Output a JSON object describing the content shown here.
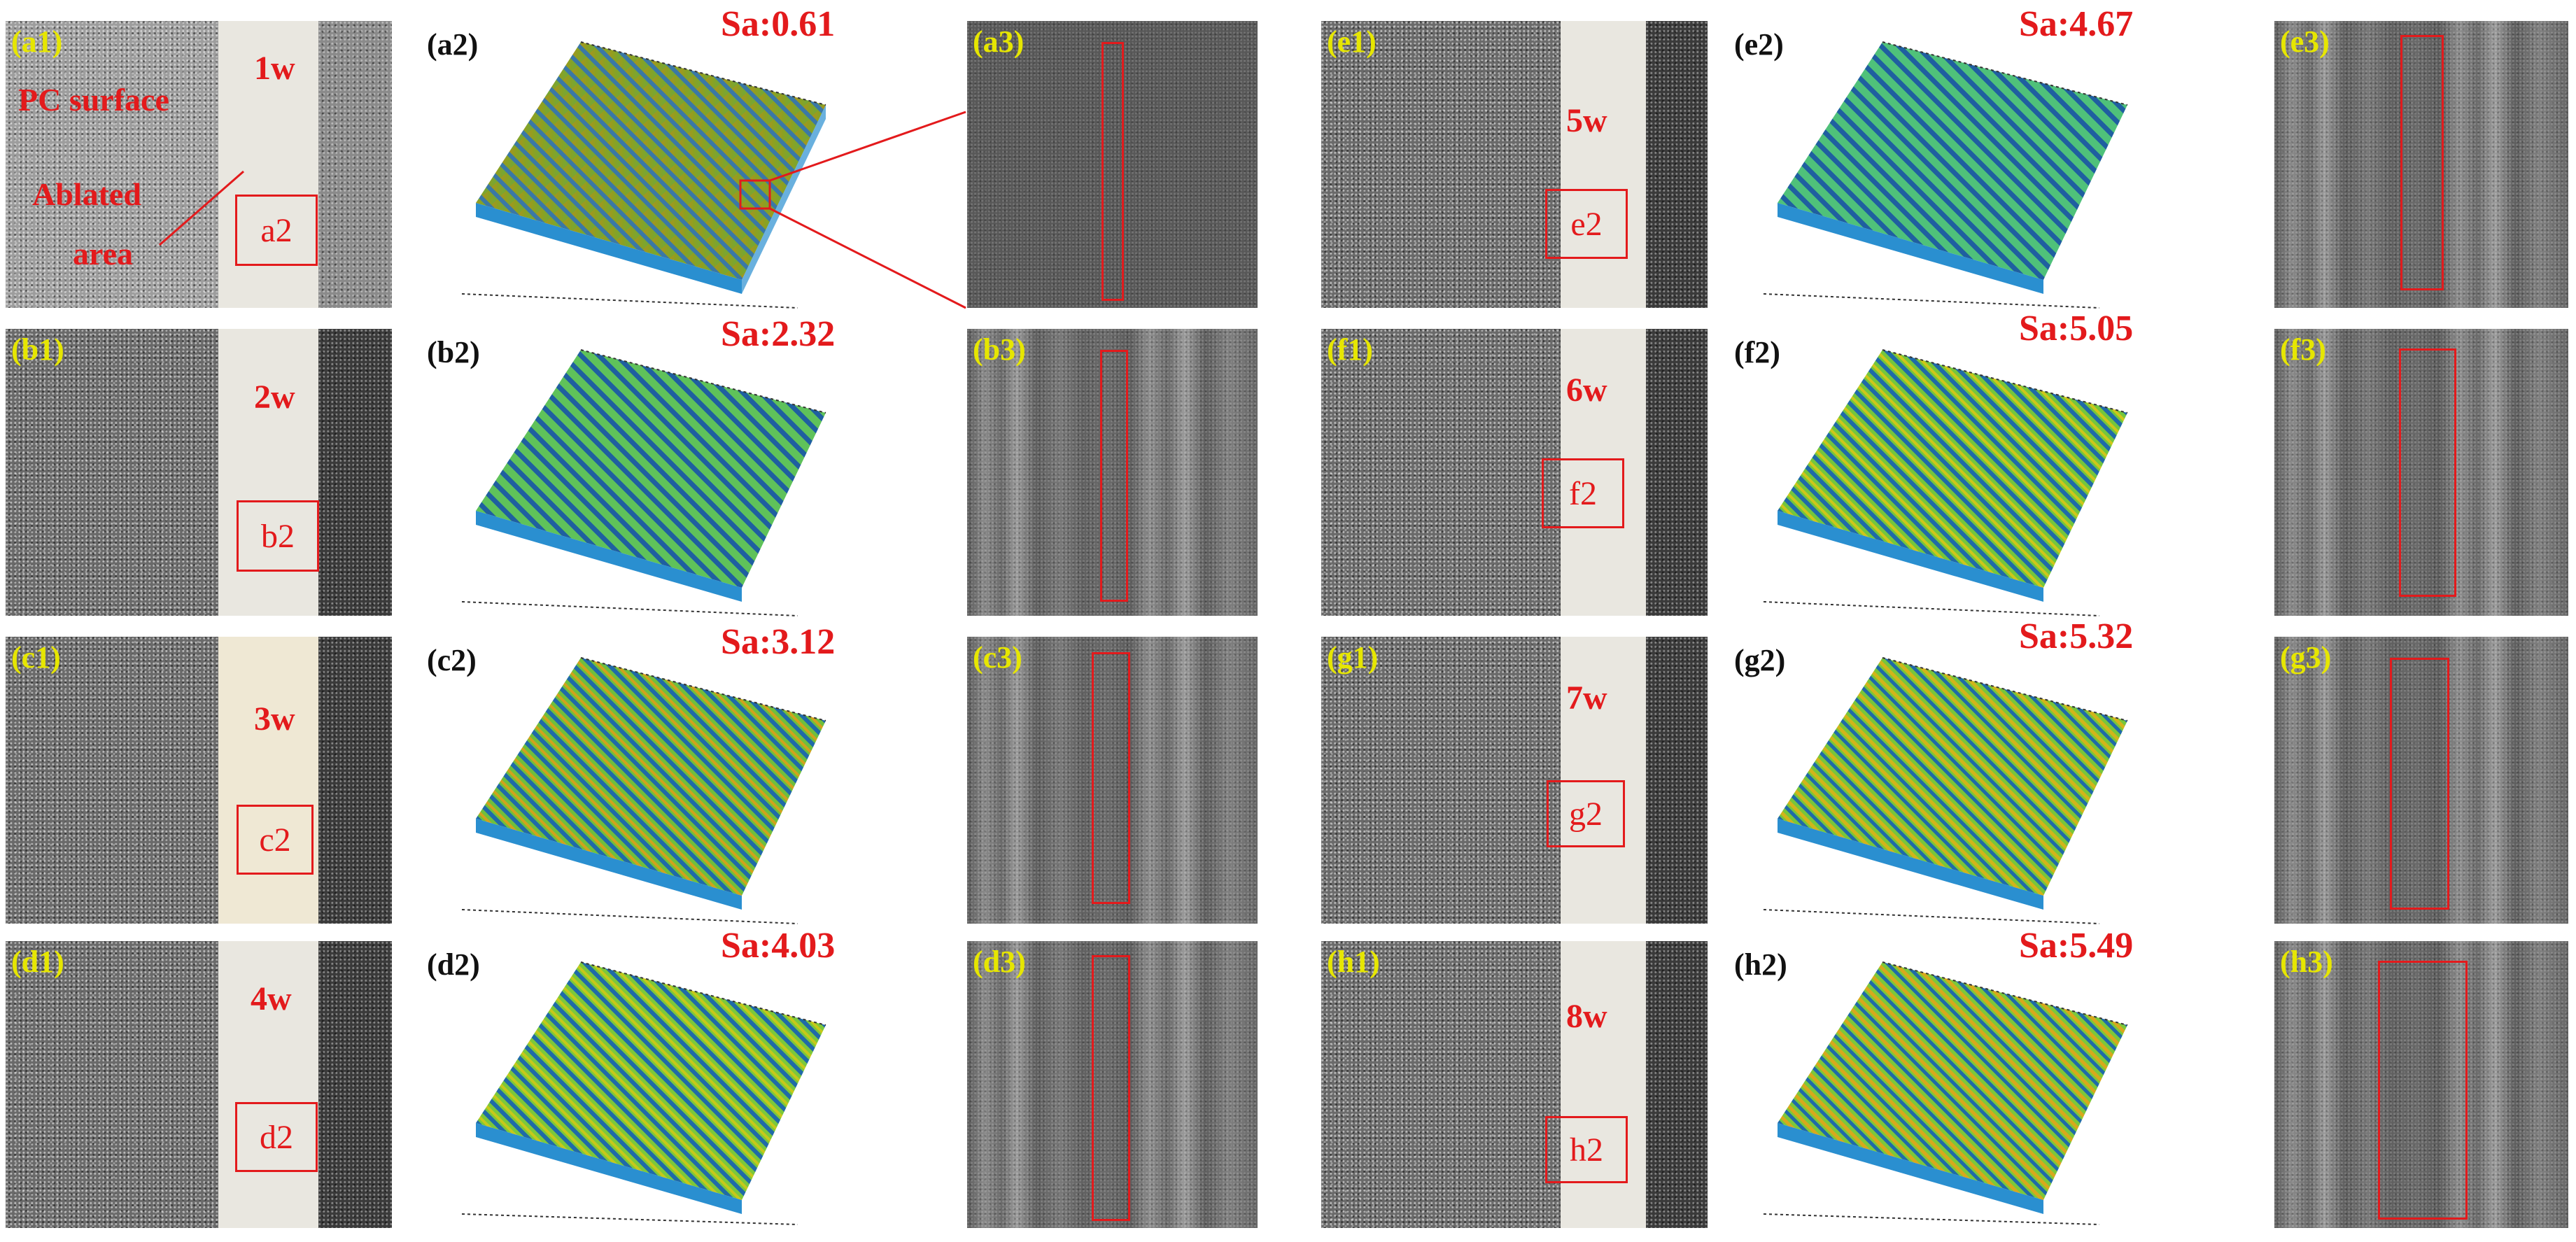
{
  "colors": {
    "label_yellow": "#e6e600",
    "annotation_red": "#e31a1c"
  },
  "annotations": {
    "pc_surface": "PC surface",
    "ablated_line1": "Ablated",
    "ablated_line2": "area"
  },
  "rows": [
    {
      "photo_label": "(a1)",
      "power": "1w",
      "ref": "a2",
      "surface_label": "(a2)",
      "sa": "Sa:0.61",
      "sem_label": "(a3)"
    },
    {
      "photo_label": "(b1)",
      "power": "2w",
      "ref": "b2",
      "surface_label": "(b2)",
      "sa": "Sa:2.32",
      "sem_label": "(b3)"
    },
    {
      "photo_label": "(c1)",
      "power": "3w",
      "ref": "c2",
      "surface_label": "(c2)",
      "sa": "Sa:3.12",
      "sem_label": "(c3)"
    },
    {
      "photo_label": "(d1)",
      "power": "4w",
      "ref": "d2",
      "surface_label": "(d2)",
      "sa": "Sa:4.03",
      "sem_label": "(d3)"
    }
  ],
  "rows_right": [
    {
      "photo_label": "(e1)",
      "power": "5w",
      "ref": "e2",
      "surface_label": "(e2)",
      "sa": "Sa:4.67",
      "sem_label": "(e3)"
    },
    {
      "photo_label": "(f1)",
      "power": "6w",
      "ref": "f2",
      "surface_label": "(f2)",
      "sa": "Sa:5.05",
      "sem_label": "(f3)"
    },
    {
      "photo_label": "(g1)",
      "power": "7w",
      "ref": "g2",
      "surface_label": "(g2)",
      "sa": "Sa:5.32",
      "sem_label": "(g3)"
    },
    {
      "photo_label": "(h1)",
      "power": "8w",
      "ref": "h2",
      "surface_label": "(h2)",
      "sa": "Sa:5.49",
      "sem_label": "(h3)"
    }
  ]
}
